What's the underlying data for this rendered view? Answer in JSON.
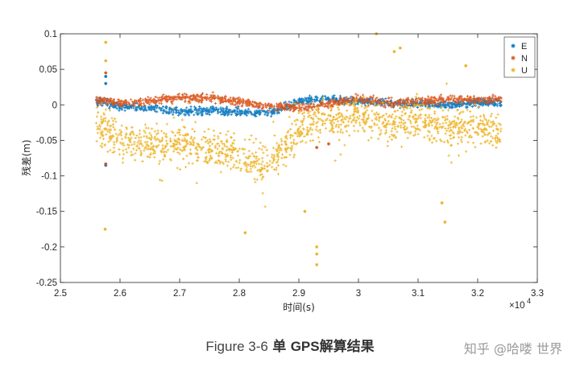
{
  "chart_data": {
    "type": "scatter",
    "xlabel": "时间(s)",
    "ylabel": "残差(m)",
    "x_exponent_label": "×10",
    "x_exponent_power": "4",
    "xlim": [
      25000,
      33000
    ],
    "ylim": [
      -0.25,
      0.1
    ],
    "xticks": [
      25000,
      26000,
      27000,
      28000,
      29000,
      30000,
      31000,
      32000,
      33000
    ],
    "xtick_labels": [
      "2.5",
      "2.6",
      "2.7",
      "2.8",
      "2.9",
      "3",
      "3.1",
      "3.2",
      "3.3"
    ],
    "yticks": [
      0.1,
      0.05,
      0,
      -0.05,
      -0.1,
      -0.15,
      -0.2,
      -0.25
    ],
    "ytick_labels": [
      "0.1",
      "0.05",
      "0",
      "-0.05",
      "-0.1",
      "-0.15",
      "-0.2",
      "-0.25"
    ],
    "grid": false,
    "legend_position": "top-right",
    "x_range": [
      25600,
      32400
    ],
    "series": [
      {
        "name": "E",
        "color": "#0072BD",
        "trend": [
          [
            25600,
            0.005
          ],
          [
            26000,
            -0.002
          ],
          [
            26500,
            -0.005
          ],
          [
            27000,
            -0.01
          ],
          [
            27500,
            -0.008
          ],
          [
            28000,
            -0.01
          ],
          [
            28500,
            -0.012
          ],
          [
            29000,
            0.005
          ],
          [
            29500,
            0.008
          ],
          [
            30000,
            0.005
          ],
          [
            30500,
            0.003
          ],
          [
            31000,
            0.002
          ],
          [
            31500,
            0.0
          ],
          [
            32000,
            0.004
          ],
          [
            32400,
            0.002
          ]
        ],
        "spread": 0.004,
        "outliers": [
          [
            25760,
            -0.085
          ],
          [
            25760,
            0.04
          ],
          [
            25760,
            0.03
          ]
        ]
      },
      {
        "name": "N",
        "color": "#D95319",
        "trend": [
          [
            25600,
            0.008
          ],
          [
            26000,
            0.002
          ],
          [
            26500,
            0.005
          ],
          [
            27000,
            0.01
          ],
          [
            27500,
            0.01
          ],
          [
            28000,
            0.005
          ],
          [
            28500,
            -0.002
          ],
          [
            29000,
            -0.005
          ],
          [
            29500,
            0.002
          ],
          [
            30000,
            0.008
          ],
          [
            30500,
            0.002
          ],
          [
            31000,
            0.005
          ],
          [
            31500,
            0.008
          ],
          [
            32000,
            0.007
          ],
          [
            32400,
            0.008
          ]
        ],
        "spread": 0.004,
        "outliers": [
          [
            25760,
            -0.083
          ],
          [
            25760,
            0.045
          ],
          [
            29300,
            -0.06
          ],
          [
            29500,
            -0.055
          ]
        ]
      },
      {
        "name": "U",
        "color": "#EDB120",
        "trend": [
          [
            25600,
            -0.025
          ],
          [
            25800,
            -0.04
          ],
          [
            26000,
            -0.05
          ],
          [
            26500,
            -0.055
          ],
          [
            27000,
            -0.055
          ],
          [
            27500,
            -0.06
          ],
          [
            28000,
            -0.07
          ],
          [
            28400,
            -0.085
          ],
          [
            28800,
            -0.06
          ],
          [
            29000,
            -0.035
          ],
          [
            29300,
            -0.02
          ],
          [
            29600,
            -0.025
          ],
          [
            30000,
            -0.01
          ],
          [
            30500,
            -0.025
          ],
          [
            31000,
            -0.02
          ],
          [
            31400,
            -0.035
          ],
          [
            32000,
            -0.03
          ],
          [
            32400,
            -0.04
          ]
        ],
        "spread": 0.018,
        "outliers": [
          [
            25760,
            0.088
          ],
          [
            25760,
            0.062
          ],
          [
            25750,
            -0.175
          ],
          [
            28100,
            -0.18
          ],
          [
            29100,
            -0.15
          ],
          [
            29300,
            -0.2
          ],
          [
            29300,
            -0.21
          ],
          [
            29300,
            -0.225
          ],
          [
            30300,
            0.1
          ],
          [
            30700,
            0.08
          ],
          [
            30600,
            0.075
          ],
          [
            31450,
            -0.165
          ],
          [
            31400,
            -0.138
          ],
          [
            31800,
            0.055
          ]
        ]
      }
    ]
  },
  "caption": {
    "latin": "Figure 3-6",
    "cjk_1": "单",
    "latin_2": "GPS",
    "cjk_2": "解算结果"
  },
  "watermark": "知乎 @哈喽 世界"
}
